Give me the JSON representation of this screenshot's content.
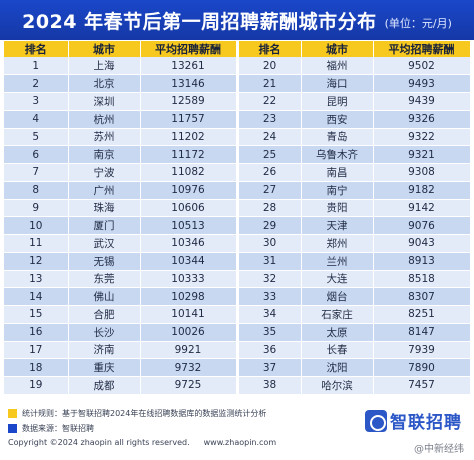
{
  "header": {
    "title": "2024 年春节后第一周招聘薪酬城市分布",
    "unit": "(单位：元/月)"
  },
  "table": {
    "columns": [
      "排名",
      "城市",
      "平均招聘薪酬",
      "排名",
      "城市",
      "平均招聘薪酬"
    ],
    "rows": [
      [
        [
          "1",
          "上海",
          "13261"
        ],
        [
          "20",
          "福州",
          "9502"
        ]
      ],
      [
        [
          "2",
          "北京",
          "13146"
        ],
        [
          "21",
          "海口",
          "9493"
        ]
      ],
      [
        [
          "3",
          "深圳",
          "12589"
        ],
        [
          "22",
          "昆明",
          "9439"
        ]
      ],
      [
        [
          "4",
          "杭州",
          "11757"
        ],
        [
          "23",
          "西安",
          "9326"
        ]
      ],
      [
        [
          "5",
          "苏州",
          "11202"
        ],
        [
          "24",
          "青岛",
          "9322"
        ]
      ],
      [
        [
          "6",
          "南京",
          "11172"
        ],
        [
          "25",
          "乌鲁木齐",
          "9321"
        ]
      ],
      [
        [
          "7",
          "宁波",
          "11082"
        ],
        [
          "26",
          "南昌",
          "9308"
        ]
      ],
      [
        [
          "8",
          "广州",
          "10976"
        ],
        [
          "27",
          "南宁",
          "9182"
        ]
      ],
      [
        [
          "9",
          "珠海",
          "10606"
        ],
        [
          "28",
          "贵阳",
          "9142"
        ]
      ],
      [
        [
          "10",
          "厦门",
          "10513"
        ],
        [
          "29",
          "天津",
          "9076"
        ]
      ],
      [
        [
          "11",
          "武汉",
          "10346"
        ],
        [
          "30",
          "郑州",
          "9043"
        ]
      ],
      [
        [
          "12",
          "无锡",
          "10344"
        ],
        [
          "31",
          "兰州",
          "8913"
        ]
      ],
      [
        [
          "13",
          "东莞",
          "10333"
        ],
        [
          "32",
          "大连",
          "8518"
        ]
      ],
      [
        [
          "14",
          "佛山",
          "10298"
        ],
        [
          "33",
          "烟台",
          "8307"
        ]
      ],
      [
        [
          "15",
          "合肥",
          "10141"
        ],
        [
          "34",
          "石家庄",
          "8251"
        ]
      ],
      [
        [
          "16",
          "长沙",
          "10026"
        ],
        [
          "35",
          "太原",
          "8147"
        ]
      ],
      [
        [
          "17",
          "济南",
          "9921"
        ],
        [
          "36",
          "长春",
          "7939"
        ]
      ],
      [
        [
          "18",
          "重庆",
          "9732"
        ],
        [
          "37",
          "沈阳",
          "7890"
        ]
      ],
      [
        [
          "19",
          "成都",
          "9725"
        ],
        [
          "38",
          "哈尔滨",
          "7457"
        ]
      ]
    ]
  },
  "footer": {
    "note1": "统计规则：基于智联招聘2024年在线招聘数据库的数据监测统计分析",
    "note2": "数据来源：智联招聘",
    "copyright": "Copyright ©2024 zhaopin all rights reserved.",
    "url": "www.zhaopin.com",
    "brand": "智联招聘",
    "watermark": "@中新经纬",
    "colors": {
      "note1_square": "#f7c81e",
      "note2_square": "#1a47c9"
    }
  }
}
